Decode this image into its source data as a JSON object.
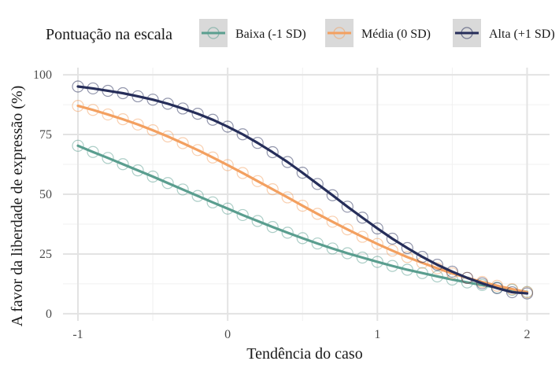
{
  "legend": {
    "title": "Pontuação na escala",
    "items": [
      {
        "label": "Baixa (-1 SD)",
        "color": "#5a9e8f"
      },
      {
        "label": "Média (0 SD)",
        "color": "#f3a060"
      },
      {
        "label": "Alta (+1 SD)",
        "color": "#262e5a"
      }
    ]
  },
  "chart_data": {
    "type": "line",
    "xlabel": "Tendência do caso",
    "ylabel": "A favor da liberdade de expressão (%)",
    "xlim": [
      -1.1,
      2.15
    ],
    "ylim": [
      -3,
      103
    ],
    "x_ticks": [
      -1,
      0,
      1,
      2
    ],
    "x_tick_labels": [
      "-1",
      "0",
      "1",
      "2"
    ],
    "y_ticks": [
      0,
      25,
      50,
      75,
      100
    ],
    "y_tick_labels": [
      "0",
      "25",
      "50",
      "75",
      "100"
    ],
    "grid": true,
    "legend_position": "top",
    "x": [
      -1.0,
      -0.9,
      -0.8,
      -0.7,
      -0.6,
      -0.5,
      -0.4,
      -0.3,
      -0.2,
      -0.1,
      0.0,
      0.1,
      0.2,
      0.3,
      0.4,
      0.5,
      0.6,
      0.7,
      0.8,
      0.9,
      1.0,
      1.1,
      1.2,
      1.3,
      1.4,
      1.5,
      1.6,
      1.7,
      1.8,
      1.9,
      2.0
    ],
    "series": [
      {
        "name": "Baixa (-1 SD)",
        "color": "#5a9e8f",
        "values": [
          70.3,
          67.7,
          65.2,
          62.6,
          60.0,
          57.4,
          54.7,
          52.0,
          49.3,
          46.6,
          44.0,
          41.3,
          38.8,
          36.3,
          33.9,
          31.6,
          29.4,
          27.3,
          25.3,
          23.5,
          21.7,
          20.0,
          18.4,
          17.0,
          15.6,
          14.3,
          13.1,
          12.0,
          10.9,
          10.0,
          9.1
        ]
      },
      {
        "name": "Média (0 SD)",
        "color": "#f3a060",
        "values": [
          87.0,
          85.3,
          83.4,
          81.4,
          79.2,
          76.8,
          74.2,
          71.4,
          68.5,
          65.4,
          62.2,
          58.9,
          55.5,
          52.1,
          48.7,
          45.2,
          41.8,
          38.5,
          35.3,
          32.2,
          29.2,
          26.4,
          23.7,
          21.3,
          19.0,
          16.9,
          15.0,
          13.3,
          11.7,
          10.3,
          9.0
        ]
      },
      {
        "name": "Alta (+1 SD)",
        "color": "#262e5a",
        "values": [
          95.1,
          94.3,
          93.3,
          92.3,
          91.0,
          89.6,
          87.9,
          85.9,
          83.7,
          81.2,
          78.3,
          75.1,
          71.5,
          67.6,
          63.5,
          59.0,
          54.3,
          49.6,
          44.8,
          40.2,
          35.7,
          31.4,
          27.5,
          23.8,
          20.5,
          17.6,
          15.0,
          12.7,
          10.7,
          9.0,
          8.5
        ]
      }
    ]
  }
}
